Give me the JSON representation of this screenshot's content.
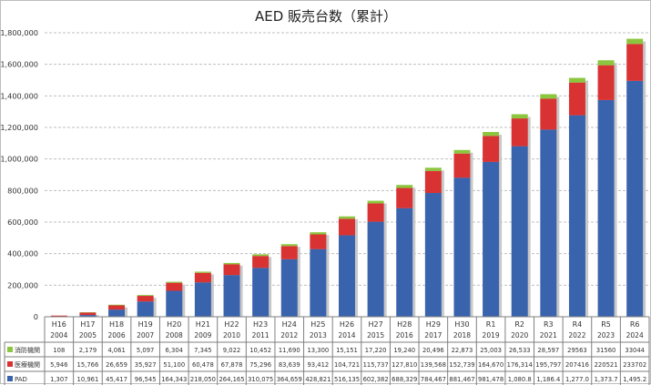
{
  "chart_data": {
    "type": "bar",
    "stacked": true,
    "title": "AED 販売台数（累計）",
    "categories_era": [
      "H16",
      "H17",
      "H18",
      "H19",
      "H20",
      "H21",
      "H22",
      "H23",
      "H24",
      "H25",
      "H26",
      "H27",
      "H28",
      "H29",
      "H30",
      "R1",
      "R2",
      "R3",
      "R4",
      "R5",
      "R6"
    ],
    "categories_year": [
      "2004",
      "2005",
      "2006",
      "2007",
      "2008",
      "2009",
      "2010",
      "2011",
      "2012",
      "2013",
      "2014",
      "2015",
      "2016",
      "2017",
      "2018",
      "2019",
      "2020",
      "2021",
      "2022",
      "2023",
      "2024"
    ],
    "ylim": [
      0,
      1800000
    ],
    "yticks": [
      0,
      200000,
      400000,
      600000,
      800000,
      1000000,
      1200000,
      1400000,
      1600000,
      1800000
    ],
    "ytick_labels": [
      "0",
      "200,000",
      "400,000",
      "600,000",
      "800,000",
      "1,000,000",
      "1,200,000",
      "1,400,000",
      "1,600,000",
      "1,800,000"
    ],
    "grid": true,
    "legend": "table-below",
    "series": [
      {
        "name": "PAD",
        "color": "#3a63ad",
        "values": [
          1307,
          10961,
          45417,
          96545,
          164343,
          218050,
          264165,
          310075,
          364659,
          428821,
          516135,
          602382,
          688329,
          784467,
          881467,
          981478,
          1080800,
          1186400,
          1277000,
          1373700,
          1495200
        ],
        "labels": [
          "1,307",
          "10,961",
          "45,417",
          "96,545",
          "164,343",
          "218,050",
          "264,165",
          "310,075",
          "364,659",
          "428,821",
          "516,135",
          "602,382",
          "688,329",
          "784,467",
          "881,467",
          "981,478",
          "1,080.8",
          "1,186.4",
          "1,277.0",
          "1,373.7",
          "1,495.2"
        ]
      },
      {
        "name": "医療機関",
        "color": "#d93232",
        "values": [
          5946,
          15766,
          26659,
          35927,
          51100,
          60478,
          67878,
          75296,
          83639,
          93412,
          104721,
          115737,
          127810,
          139568,
          152739,
          164670,
          176314,
          195797,
          207416,
          220521,
          233702
        ],
        "labels": [
          "5,946",
          "15,766",
          "26,659",
          "35,927",
          "51,100",
          "60,478",
          "67,878",
          "75,296",
          "83,639",
          "93,412",
          "104,721",
          "115,737",
          "127,810",
          "139,568",
          "152,739",
          "164,670",
          "176,314",
          "195,797",
          "207416",
          "220521",
          "233702"
        ]
      },
      {
        "name": "消防機関",
        "color": "#8cc63f",
        "values": [
          108,
          2179,
          4061,
          5097,
          6304,
          7345,
          9022,
          10452,
          11690,
          13300,
          15151,
          17220,
          19240,
          20496,
          22873,
          25003,
          26533,
          28597,
          29563,
          31560,
          33044
        ],
        "labels": [
          "108",
          "2,179",
          "4,061",
          "5,097",
          "6,304",
          "7,345",
          "9,022",
          "10,452",
          "11,690",
          "13,300",
          "15,151",
          "17,220",
          "19,240",
          "20,496",
          "22,873",
          "25,003",
          "26,533",
          "28,597",
          "29563",
          "31560",
          "33044"
        ]
      }
    ]
  }
}
